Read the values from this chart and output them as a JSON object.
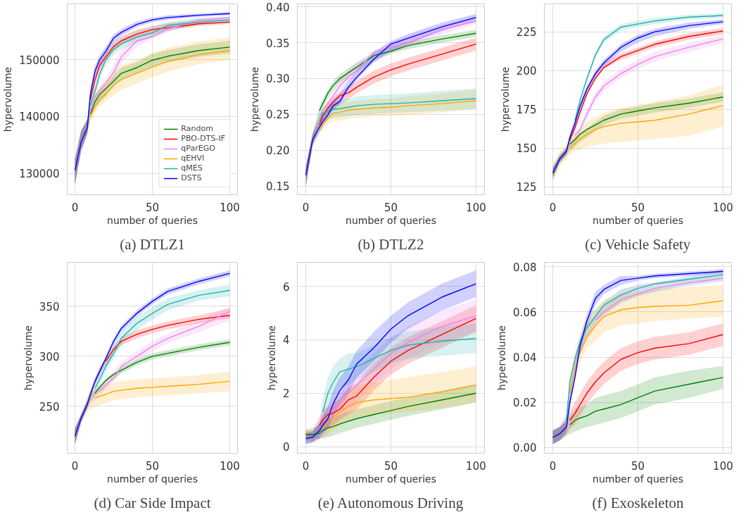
{
  "chart_data": [
    {
      "type": "line",
      "title": "(a) DTLZ1",
      "xlabel": "number of queries",
      "ylabel": "hypervolume",
      "grid": true,
      "legend": "bottom right",
      "xlim": [
        -5,
        105
      ],
      "xticks": [
        0,
        50,
        100
      ],
      "ylim": [
        126250,
        159800
      ],
      "yticks": [
        130000,
        140000,
        150000
      ],
      "x": [
        0,
        4,
        8,
        10,
        13,
        16,
        20,
        25,
        30,
        40,
        50,
        60,
        80,
        100
      ],
      "series": [
        {
          "name": "Random",
          "color": "#008000",
          "values": [
            null,
            null,
            null,
            140500,
            142600,
            143900,
            144900,
            146200,
            147600,
            148600,
            149900,
            150600,
            151600,
            152200
          ],
          "lower": [
            128000,
            134000,
            137000,
            139500,
            141500,
            142500,
            143500,
            145200,
            146600,
            147600,
            148800,
            149500,
            150500,
            151100
          ],
          "upper": [
            132500,
            137500,
            139500,
            141500,
            143500,
            144500,
            145500,
            147200,
            148600,
            149600,
            151000,
            151700,
            152700,
            153300
          ]
        },
        {
          "name": "PBO-DTS-IF",
          "color": "#ff0000",
          "values": [
            null,
            null,
            null,
            143000,
            146500,
            149000,
            150500,
            152300,
            153300,
            154500,
            155300,
            155600,
            156300,
            156600
          ],
          "lower": [
            128000,
            134000,
            137000,
            142000,
            145500,
            148200,
            149700,
            151500,
            152500,
            153700,
            154500,
            155200,
            155900,
            156300
          ],
          "upper": [
            132500,
            137500,
            139500,
            144000,
            147500,
            149800,
            151300,
            153100,
            154100,
            155300,
            155900,
            156400,
            156900,
            157100
          ]
        },
        {
          "name": "qParEGO",
          "color": "#ee82ee",
          "values": [
            null,
            null,
            null,
            141000,
            143500,
            144600,
            145800,
            147800,
            150500,
            153300,
            154100,
            155400,
            156900,
            157400
          ],
          "lower": [
            128000,
            134000,
            137000,
            140000,
            141300,
            142800,
            144300,
            146500,
            149300,
            152300,
            153700,
            154800,
            156300,
            156900
          ],
          "upper": [
            132500,
            137500,
            139500,
            142000,
            143700,
            145200,
            146700,
            149100,
            151700,
            154300,
            155300,
            156200,
            157300,
            157700
          ]
        },
        {
          "name": "qEHVI",
          "color": "#ffa500",
          "values": [
            null,
            null,
            null,
            140000,
            141700,
            143000,
            144000,
            145500,
            146500,
            147600,
            148700,
            149700,
            150900,
            151600
          ],
          "lower": [
            128000,
            134000,
            137000,
            139000,
            140700,
            141800,
            142700,
            143800,
            144700,
            145800,
            146900,
            147900,
            149200,
            149900
          ],
          "upper": [
            132500,
            137500,
            139500,
            141800,
            144000,
            145300,
            146400,
            147800,
            149000,
            150000,
            151200,
            152100,
            153200,
            153900
          ]
        },
        {
          "name": "qMES",
          "color": "#20b2aa",
          "values": [
            null,
            null,
            null,
            142000,
            144500,
            147500,
            150000,
            151800,
            152800,
            154000,
            154700,
            156000,
            156600,
            157000
          ],
          "lower": [
            128000,
            134000,
            137000,
            141000,
            143500,
            146500,
            149000,
            150800,
            151800,
            153000,
            153800,
            155000,
            156100,
            156500
          ],
          "upper": [
            132500,
            137500,
            139500,
            143000,
            145500,
            148500,
            151000,
            152800,
            153800,
            155000,
            155800,
            156600,
            157300,
            157500
          ]
        },
        {
          "name": "DSTS",
          "color": "#0000ff",
          "values": [
            130500,
            135500,
            138000,
            144000,
            148000,
            150000,
            151500,
            153800,
            154800,
            156200,
            157000,
            157400,
            157800,
            158100
          ],
          "lower": [
            128000,
            134000,
            137000,
            143000,
            147000,
            149200,
            150800,
            153000,
            154200,
            155700,
            156600,
            157000,
            157500,
            157800
          ],
          "upper": [
            132500,
            137500,
            139500,
            145000,
            149000,
            150800,
            152300,
            154400,
            155400,
            156700,
            157400,
            157800,
            158100,
            158400
          ]
        }
      ]
    },
    {
      "type": "line",
      "title": "(b) DTLZ2",
      "xlabel": "number of queries",
      "ylabel": "hypervolume",
      "grid": true,
      "xlim": [
        -5,
        105
      ],
      "xticks": [
        0,
        50,
        100
      ],
      "ylim": [
        0.138,
        0.404
      ],
      "yticks": [
        0.15,
        {
          "value": 0.2,
          "label": "0.20"
        },
        0.25,
        {
          "value": 0.3,
          "label": "0.30"
        },
        0.35,
        {
          "value": 0.4,
          "label": "0.40"
        }
      ],
      "x": [
        0,
        4,
        8,
        10,
        13,
        16,
        20,
        25,
        30,
        40,
        50,
        60,
        80,
        100
      ],
      "series": [
        {
          "color": "#008000",
          "values": [
            null,
            null,
            0.255,
            0.265,
            0.28,
            0.29,
            0.3,
            0.308,
            0.316,
            0.332,
            0.338,
            0.346,
            0.355,
            0.363
          ],
          "lower": [
            0.15,
            0.208,
            0.248,
            0.259,
            0.272,
            0.284,
            0.294,
            0.302,
            0.31,
            0.325,
            0.335,
            0.341,
            0.35,
            0.358
          ],
          "upper": [
            0.178,
            0.222,
            0.262,
            0.271,
            0.284,
            0.296,
            0.306,
            0.314,
            0.322,
            0.335,
            0.345,
            0.351,
            0.36,
            0.368
          ]
        },
        {
          "color": "#ff0000",
          "values": [
            null,
            null,
            0.236,
            0.248,
            0.259,
            0.267,
            0.276,
            0.28,
            0.288,
            0.302,
            0.312,
            0.32,
            0.334,
            0.348
          ],
          "lower": [
            0.15,
            0.207,
            0.232,
            0.24,
            0.25,
            0.257,
            0.263,
            0.271,
            0.279,
            0.293,
            0.303,
            0.311,
            0.325,
            0.339
          ],
          "upper": [
            0.178,
            0.223,
            0.248,
            0.256,
            0.266,
            0.273,
            0.281,
            0.289,
            0.297,
            0.311,
            0.321,
            0.329,
            0.343,
            0.357
          ]
        },
        {
          "color": "#ee82ee",
          "values": [
            null,
            null,
            0.245,
            0.256,
            0.266,
            0.275,
            0.29,
            0.302,
            0.311,
            0.337,
            0.343,
            0.35,
            0.368,
            0.38
          ],
          "lower": [
            0.15,
            0.207,
            0.232,
            0.242,
            0.254,
            0.267,
            0.282,
            0.297,
            0.307,
            0.322,
            0.334,
            0.344,
            0.361,
            0.376
          ],
          "upper": [
            0.178,
            0.223,
            0.248,
            0.258,
            0.27,
            0.283,
            0.298,
            0.313,
            0.323,
            0.338,
            0.35,
            0.36,
            0.375,
            0.388
          ]
        },
        {
          "color": "#ffa500",
          "values": [
            null,
            null,
            0.228,
            0.236,
            0.244,
            0.252,
            0.253,
            0.256,
            0.257,
            0.259,
            0.26,
            0.262,
            0.265,
            0.269
          ],
          "lower": [
            0.15,
            0.205,
            0.222,
            0.229,
            0.237,
            0.24,
            0.241,
            0.244,
            0.245,
            0.247,
            0.248,
            0.249,
            0.253,
            0.257
          ],
          "upper": [
            0.178,
            0.225,
            0.242,
            0.251,
            0.259,
            0.264,
            0.265,
            0.268,
            0.269,
            0.271,
            0.272,
            0.275,
            0.279,
            0.285
          ]
        },
        {
          "color": "#20b2aa",
          "values": [
            null,
            null,
            0.24,
            0.252,
            0.254,
            0.257,
            0.258,
            0.26,
            0.262,
            0.264,
            0.265,
            0.266,
            0.269,
            0.272
          ],
          "lower": [
            0.15,
            0.205,
            0.23,
            0.237,
            0.244,
            0.245,
            0.246,
            0.248,
            0.249,
            0.251,
            0.252,
            0.253,
            0.255,
            0.257
          ],
          "upper": [
            0.178,
            0.225,
            0.25,
            0.259,
            0.266,
            0.269,
            0.27,
            0.272,
            0.275,
            0.277,
            0.278,
            0.279,
            0.283,
            0.286
          ]
        },
        {
          "color": "#0000ff",
          "values": [
            0.165,
            0.215,
            0.232,
            0.24,
            0.249,
            0.262,
            0.268,
            0.288,
            0.302,
            0.327,
            0.348,
            0.356,
            0.372,
            0.385
          ],
          "lower": [
            0.15,
            0.208,
            0.225,
            0.233,
            0.246,
            0.256,
            0.265,
            0.283,
            0.298,
            0.323,
            0.338,
            0.348,
            0.366,
            0.38
          ],
          "upper": [
            0.178,
            0.222,
            0.239,
            0.247,
            0.26,
            0.27,
            0.279,
            0.297,
            0.312,
            0.337,
            0.352,
            0.362,
            0.378,
            0.39
          ]
        }
      ]
    },
    {
      "type": "line",
      "title": "(c) Vehicle Safety",
      "xlabel": "number of queries",
      "ylabel": "hypervolume",
      "grid": true,
      "xlim": [
        -5,
        105
      ],
      "xticks": [
        0,
        50,
        100
      ],
      "ylim": [
        120,
        243
      ],
      "yticks": [
        125,
        150,
        175,
        200,
        225
      ],
      "x": [
        0,
        4,
        8,
        10,
        13,
        16,
        20,
        25,
        30,
        40,
        50,
        60,
        80,
        100
      ],
      "series": [
        {
          "color": "#008000",
          "values": [
            null,
            null,
            null,
            152.5,
            155.5,
            159,
            162,
            165,
            168,
            172,
            174,
            176,
            179,
            183
          ],
          "lower": [
            130,
            140,
            145,
            148,
            151,
            154,
            157,
            161,
            165,
            169,
            171,
            173,
            176,
            180
          ],
          "upper": [
            138,
            146,
            151,
            154,
            157,
            160,
            163,
            167,
            171,
            175,
            177,
            179,
            182,
            186
          ]
        },
        {
          "color": "#ff0000",
          "values": [
            null,
            null,
            null,
            155,
            163,
            173,
            185,
            195,
            202,
            209,
            213,
            217,
            222,
            225.5
          ],
          "lower": [
            131,
            141,
            146,
            153,
            163,
            173,
            184,
            195,
            201,
            207,
            211,
            215,
            220,
            223.5
          ],
          "upper": [
            137,
            145,
            150,
            157,
            167,
            177,
            188,
            199,
            205,
            211,
            215,
            219,
            224,
            227.5
          ]
        },
        {
          "color": "#ee82ee",
          "values": [
            null,
            null,
            null,
            null,
            158.5,
            162,
            172,
            183,
            190,
            198,
            204,
            209,
            215,
            220.5
          ],
          "lower": [
            131,
            141,
            146,
            150,
            153,
            159,
            169,
            180,
            187,
            195,
            201,
            206,
            212,
            218
          ],
          "upper": [
            137,
            145,
            150,
            154,
            159,
            165,
            175,
            186,
            193,
            201,
            207,
            212,
            218,
            223
          ]
        },
        {
          "color": "#ffa500",
          "values": [
            null,
            null,
            null,
            150,
            153,
            156,
            159,
            162,
            164,
            166,
            167,
            168,
            172,
            177.5
          ],
          "lower": [
            128,
            138,
            143,
            146,
            148,
            149,
            151,
            152,
            153,
            154,
            155,
            156,
            158,
            164
          ],
          "upper": [
            140,
            148,
            152,
            155,
            158,
            163,
            167,
            170,
            173,
            176,
            178,
            180,
            184,
            191
          ]
        },
        {
          "color": "#20b2aa",
          "values": [
            null,
            null,
            null,
            null,
            168,
            181,
            195,
            210,
            220,
            228,
            230,
            232,
            234.5,
            235.5
          ],
          "lower": [
            131,
            141,
            146,
            153,
            164,
            176,
            191,
            208,
            218,
            226,
            228,
            230,
            233,
            234
          ],
          "upper": [
            137,
            145,
            150,
            157,
            168,
            180,
            195,
            212,
            222,
            230,
            232,
            234,
            236,
            237
          ]
        },
        {
          "color": "#0000ff",
          "values": [
            134,
            143,
            148,
            157,
            166,
            177,
            188,
            198,
            205,
            215,
            221,
            225,
            229,
            231.5
          ],
          "lower": [
            131,
            141,
            146,
            155,
            165,
            175,
            186,
            196,
            203,
            212,
            218,
            222,
            227,
            230
          ],
          "upper": [
            137,
            145,
            150,
            159,
            169,
            179,
            190,
            200,
            207,
            217,
            223,
            227,
            231,
            233
          ]
        }
      ]
    },
    {
      "type": "line",
      "title": "(d) Car Side Impact",
      "xlabel": "number of queries",
      "ylabel": "hypervolume",
      "grid": true,
      "xlim": [
        -5,
        105
      ],
      "xticks": [
        0,
        50,
        100
      ],
      "ylim": [
        203,
        394
      ],
      "yticks": [
        250,
        300,
        350
      ],
      "x": [
        0,
        4,
        8,
        10,
        13,
        16,
        20,
        25,
        30,
        40,
        50,
        60,
        80,
        100
      ],
      "series": [
        {
          "color": "#008000",
          "values": [
            null,
            null,
            null,
            null,
            263,
            269,
            276,
            282,
            286,
            294,
            300,
            303,
            309,
            314
          ],
          "lower": [
            212,
            234,
            249,
            255,
            260,
            265,
            271,
            277,
            283,
            291,
            297,
            300,
            306,
            311
          ],
          "upper": [
            228,
            242,
            255,
            261,
            266,
            271,
            277,
            283,
            289,
            297,
            303,
            306,
            312,
            317
          ]
        },
        {
          "color": "#ff0000",
          "values": [
            null,
            null,
            null,
            null,
            null,
            null,
            295,
            307,
            315,
            322,
            327,
            331,
            337,
            341
          ],
          "lower": [
            212,
            234,
            248,
            258,
            271,
            281,
            291,
            303,
            311,
            318,
            323,
            327,
            333,
            338
          ],
          "upper": [
            228,
            242,
            256,
            266,
            279,
            289,
            299,
            311,
            319,
            326,
            331,
            335,
            341,
            348
          ]
        },
        {
          "color": "#ee82ee",
          "values": [
            null,
            null,
            null,
            null,
            null,
            265,
            271,
            278,
            290,
            300,
            310,
            318,
            330,
            345
          ],
          "lower": [
            212,
            234,
            247,
            251,
            257,
            261,
            267,
            275,
            285,
            295,
            305,
            313,
            324,
            336
          ],
          "upper": [
            228,
            242,
            257,
            261,
            267,
            271,
            277,
            285,
            295,
            305,
            315,
            323,
            336,
            350
          ]
        },
        {
          "color": "#ffa500",
          "values": [
            null,
            null,
            null,
            null,
            258,
            260,
            262,
            265,
            266,
            268,
            269,
            270,
            272,
            275
          ],
          "lower": [
            212,
            234,
            244,
            247,
            249,
            251,
            253,
            256,
            257,
            259,
            260,
            261,
            263,
            265
          ],
          "upper": [
            228,
            242,
            260,
            265,
            267,
            269,
            271,
            274,
            275,
            277,
            278,
            279,
            281,
            285
          ]
        },
        {
          "color": "#20b2aa",
          "values": [
            null,
            null,
            null,
            null,
            268,
            277,
            290,
            303,
            318,
            333,
            343,
            352,
            361,
            366
          ],
          "lower": [
            212,
            234,
            247,
            255,
            263,
            272,
            284,
            298,
            311,
            326,
            337,
            346,
            356,
            360
          ],
          "upper": [
            228,
            242,
            257,
            265,
            273,
            282,
            296,
            312,
            325,
            340,
            349,
            358,
            366,
            372
          ]
        },
        {
          "color": "#0000ff",
          "values": [
            220,
            238,
            252,
            262,
            275,
            285,
            298,
            315,
            328,
            343,
            355,
            365,
            375,
            383
          ],
          "lower": [
            212,
            234,
            249,
            259,
            272,
            282,
            295,
            312,
            325,
            340,
            352,
            362,
            372,
            380
          ],
          "upper": [
            228,
            242,
            255,
            265,
            278,
            288,
            301,
            318,
            331,
            346,
            358,
            368,
            378,
            386
          ]
        }
      ]
    },
    {
      "type": "line",
      "title": "(e) Autonomous Driving",
      "xlabel": "number of queries",
      "ylabel": "hypervolume",
      "grid": true,
      "xlim": [
        -5,
        105
      ],
      "xticks": [
        0,
        50,
        100
      ],
      "ylim": [
        -0.25,
        6.9
      ],
      "yticks": [
        0,
        2,
        4,
        6
      ],
      "x": [
        0,
        4,
        8,
        10,
        13,
        16,
        20,
        25,
        30,
        40,
        50,
        60,
        80,
        100
      ],
      "series": [
        {
          "color": "#008000",
          "values": [
            0.45,
            0.45,
            0.5,
            0.6,
            0.7,
            0.75,
            0.85,
            0.95,
            1.05,
            1.2,
            1.35,
            1.5,
            1.75,
            2.0
          ],
          "lower": [
            0.25,
            0.3,
            0.3,
            0.3,
            0.35,
            0.4,
            0.5,
            0.6,
            0.7,
            0.85,
            1.0,
            1.15,
            1.4,
            1.65
          ],
          "upper": [
            0.65,
            0.7,
            0.8,
            0.9,
            1.05,
            1.1,
            1.2,
            1.3,
            1.4,
            1.55,
            1.7,
            1.85,
            2.1,
            2.35
          ]
        },
        {
          "color": "#ff0000",
          "values": [
            null,
            null,
            0.8,
            1.0,
            1.2,
            1.25,
            1.4,
            1.75,
            1.9,
            2.6,
            3.2,
            3.6,
            4.2,
            4.8
          ],
          "lower": [
            0.2,
            0.2,
            0.5,
            0.6,
            0.7,
            0.8,
            1.0,
            1.2,
            1.4,
            2.1,
            2.7,
            3.1,
            3.7,
            4.3
          ],
          "upper": [
            0.6,
            0.6,
            1.1,
            1.4,
            1.5,
            1.6,
            1.8,
            2.2,
            2.4,
            3.1,
            3.7,
            4.1,
            4.7,
            5.3
          ]
        },
        {
          "color": "#ee82ee",
          "values": [
            null,
            null,
            null,
            null,
            null,
            1.4,
            1.5,
            2.0,
            2.3,
            2.9,
            3.5,
            3.9,
            4.5,
            4.9
          ],
          "lower": [
            0.1,
            0.15,
            0.3,
            0.4,
            0.5,
            0.8,
            1.0,
            1.3,
            1.7,
            2.3,
            2.9,
            3.3,
            3.9,
            4.3
          ],
          "upper": [
            0.5,
            0.55,
            0.9,
            1.2,
            1.5,
            1.8,
            2.0,
            2.5,
            2.9,
            3.5,
            4.1,
            4.5,
            5.1,
            5.5
          ]
        },
        {
          "color": "#ffa500",
          "values": [
            null,
            null,
            null,
            0.7,
            0.9,
            1.1,
            1.3,
            1.5,
            1.65,
            1.75,
            1.8,
            1.85,
            2.05,
            2.3
          ],
          "lower": [
            0.15,
            0.2,
            0.3,
            0.35,
            0.45,
            0.6,
            0.8,
            1.0,
            1.1,
            1.2,
            1.25,
            1.3,
            1.45,
            1.65
          ],
          "upper": [
            0.55,
            0.6,
            0.8,
            1.05,
            1.35,
            1.6,
            1.8,
            2.2,
            2.3,
            2.4,
            2.5,
            2.6,
            2.8,
            3.0
          ]
        },
        {
          "color": "#20b2aa",
          "values": [
            null,
            null,
            null,
            1.3,
            2.0,
            2.4,
            2.8,
            2.9,
            3.0,
            3.3,
            3.6,
            3.8,
            3.95,
            4.05
          ],
          "lower": [
            0.1,
            0.15,
            0.35,
            0.8,
            1.4,
            1.8,
            2.2,
            2.3,
            2.5,
            2.8,
            3.1,
            3.3,
            3.4,
            3.5
          ],
          "upper": [
            0.5,
            0.55,
            0.85,
            1.8,
            2.6,
            3.0,
            3.3,
            3.5,
            3.5,
            3.8,
            4.1,
            4.3,
            4.5,
            4.6
          ]
        },
        {
          "color": "#0000ff",
          "values": [
            0.3,
            0.35,
            0.6,
            0.8,
            1.05,
            1.6,
            2.1,
            2.5,
            3.1,
            3.7,
            4.4,
            4.9,
            5.6,
            6.1
          ],
          "lower": [
            0.1,
            0.15,
            0.3,
            0.45,
            0.7,
            1.1,
            1.6,
            2.0,
            2.6,
            3.2,
            3.9,
            4.4,
            5.1,
            5.6
          ],
          "upper": [
            0.5,
            0.55,
            0.9,
            1.15,
            1.5,
            2.1,
            2.6,
            3.0,
            3.6,
            4.3,
            4.9,
            5.4,
            6.1,
            6.6
          ]
        }
      ]
    },
    {
      "type": "line",
      "title": "(f) Exoskeleton",
      "xlabel": "number of queries",
      "ylabel": "hypervolume",
      "grid": true,
      "xlim": [
        -5,
        105
      ],
      "xticks": [
        0,
        50,
        100
      ],
      "ylim": [
        -0.0026,
        0.082
      ],
      "yticks": [
        {
          "value": 0,
          "label": "0.00"
        },
        {
          "value": 0.02,
          "label": "0.02"
        },
        {
          "value": 0.04,
          "label": "0.04"
        },
        {
          "value": 0.06,
          "label": "0.06"
        },
        {
          "value": 0.08,
          "label": "0.08"
        }
      ],
      "x": [
        0,
        4,
        8,
        10,
        13,
        16,
        20,
        25,
        30,
        40,
        50,
        60,
        80,
        100
      ],
      "series": [
        {
          "color": "#008000",
          "values": [
            null,
            null,
            null,
            0.01,
            0.012,
            0.013,
            0.014,
            0.016,
            0.017,
            0.019,
            0.022,
            0.025,
            0.028,
            0.031
          ],
          "lower": [
            0.0015,
            0.003,
            0.005,
            0.006,
            0.007,
            0.008,
            0.009,
            0.01,
            0.011,
            0.013,
            0.016,
            0.019,
            0.022,
            0.026
          ],
          "upper": [
            0.0075,
            0.009,
            0.011,
            0.014,
            0.017,
            0.018,
            0.019,
            0.022,
            0.023,
            0.025,
            0.028,
            0.031,
            0.034,
            0.036
          ]
        },
        {
          "color": "#ff0000",
          "values": [
            null,
            null,
            null,
            0.012,
            0.015,
            0.019,
            0.024,
            0.029,
            0.033,
            0.039,
            0.042,
            0.044,
            0.046,
            0.05
          ],
          "lower": [
            0.0015,
            0.003,
            0.006,
            0.008,
            0.01,
            0.014,
            0.019,
            0.024,
            0.028,
            0.034,
            0.037,
            0.039,
            0.041,
            0.045
          ],
          "upper": [
            0.0075,
            0.009,
            0.012,
            0.016,
            0.02,
            0.024,
            0.029,
            0.034,
            0.038,
            0.044,
            0.047,
            0.049,
            0.051,
            0.055
          ]
        },
        {
          "color": "#ee82ee",
          "values": [
            null,
            null,
            null,
            null,
            null,
            null,
            null,
            0.0565,
            0.06,
            0.0655,
            0.068,
            0.0705,
            0.073,
            0.075
          ],
          "lower": [
            0.0015,
            0.003,
            0.007,
            0.022,
            0.033,
            0.041,
            0.048,
            0.053,
            0.058,
            0.064,
            0.067,
            0.069,
            0.0715,
            0.0735
          ],
          "upper": [
            0.0075,
            0.009,
            0.013,
            0.028,
            0.039,
            0.047,
            0.054,
            0.059,
            0.064,
            0.07,
            0.072,
            0.073,
            0.0755,
            0.0775
          ]
        },
        {
          "color": "#ffa500",
          "values": [
            null,
            null,
            null,
            0.024,
            0.035,
            0.042,
            0.049,
            0.054,
            0.058,
            0.061,
            0.062,
            0.0625,
            0.063,
            0.065
          ],
          "lower": [
            0.0015,
            0.003,
            0.006,
            0.02,
            0.03,
            0.037,
            0.044,
            0.047,
            0.051,
            0.054,
            0.055,
            0.056,
            0.057,
            0.058
          ],
          "upper": [
            0.0075,
            0.009,
            0.014,
            0.03,
            0.042,
            0.051,
            0.058,
            0.061,
            0.065,
            0.068,
            0.069,
            0.07,
            0.071,
            0.072
          ]
        },
        {
          "color": "#20b2aa",
          "values": [
            null,
            null,
            0.012,
            0.029,
            0.039,
            0.047,
            0.053,
            0.058,
            0.063,
            0.0675,
            0.0705,
            0.0725,
            0.0745,
            0.0765
          ],
          "lower": [
            0.0015,
            0.003,
            0.009,
            0.025,
            0.035,
            0.042,
            0.049,
            0.055,
            0.059,
            0.064,
            0.067,
            0.069,
            0.072,
            0.074
          ],
          "upper": [
            0.0075,
            0.009,
            0.015,
            0.031,
            0.041,
            0.048,
            0.055,
            0.061,
            0.065,
            0.07,
            0.072,
            0.073,
            0.076,
            0.078
          ]
        },
        {
          "color": "#0000ff",
          "values": [
            0.0045,
            0.006,
            0.009,
            0.02,
            0.031,
            0.045,
            0.056,
            0.066,
            0.07,
            0.074,
            0.075,
            0.076,
            0.077,
            0.078
          ],
          "lower": [
            0.0015,
            0.003,
            0.006,
            0.017,
            0.03,
            0.042,
            0.053,
            0.063,
            0.068,
            0.072,
            0.074,
            0.075,
            0.076,
            0.077
          ],
          "upper": [
            0.0075,
            0.009,
            0.012,
            0.023,
            0.036,
            0.048,
            0.059,
            0.069,
            0.072,
            0.076,
            0.076,
            0.077,
            0.078,
            0.079
          ]
        }
      ]
    }
  ]
}
